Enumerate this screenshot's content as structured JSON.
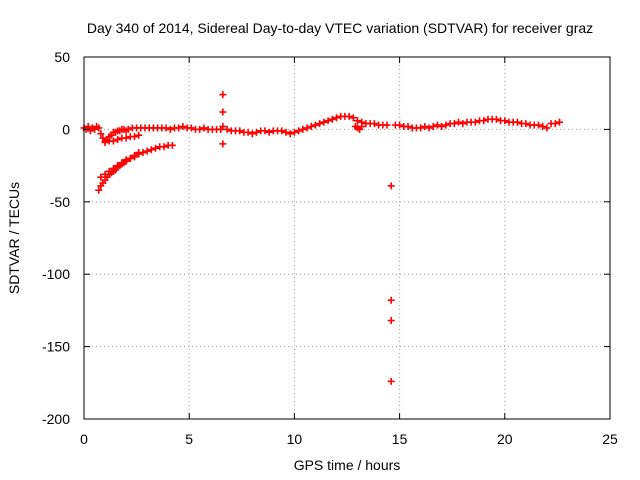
{
  "chart_data": {
    "type": "scatter",
    "title": "Day 340 of 2014, Sidereal Day-to-day VTEC variation (SDTVAR) for receiver graz",
    "xlabel": "GPS time / hours",
    "ylabel": "SDTVAR / TECUs",
    "xlim": [
      0,
      25
    ],
    "ylim": [
      -200,
      50
    ],
    "xticks": [
      0,
      5,
      10,
      15,
      20,
      25
    ],
    "yticks": [
      -200,
      -150,
      -100,
      -50,
      0,
      50
    ],
    "xtick_labels": [
      "0",
      "5",
      "10",
      "15",
      "20",
      "25"
    ],
    "ytick_labels": [
      "-200",
      "-150",
      "-100",
      "-50",
      "0",
      "50"
    ],
    "grid": true,
    "marker": "+",
    "series": [
      {
        "name": "SDTVAR",
        "color": "#ff0000",
        "points": [
          [
            0.0,
            1
          ],
          [
            0.1,
            0
          ],
          [
            0.2,
            2
          ],
          [
            0.3,
            -1
          ],
          [
            0.4,
            1
          ],
          [
            0.5,
            0
          ],
          [
            0.6,
            2
          ],
          [
            0.7,
            1
          ],
          [
            0.8,
            -3
          ],
          [
            0.9,
            -6
          ],
          [
            1.0,
            -8
          ],
          [
            1.1,
            -7
          ],
          [
            1.2,
            -5
          ],
          [
            1.3,
            -4
          ],
          [
            1.4,
            -2
          ],
          [
            1.5,
            -2
          ],
          [
            1.6,
            -1
          ],
          [
            1.7,
            -1
          ],
          [
            1.8,
            0
          ],
          [
            1.9,
            0
          ],
          [
            2.0,
            -1
          ],
          [
            2.1,
            0
          ],
          [
            2.3,
            1
          ],
          [
            2.5,
            1
          ],
          [
            2.7,
            1
          ],
          [
            2.9,
            1
          ],
          [
            3.1,
            1
          ],
          [
            3.3,
            1
          ],
          [
            3.5,
            1
          ],
          [
            3.7,
            1
          ],
          [
            3.9,
            1
          ],
          [
            4.1,
            0
          ],
          [
            4.3,
            1
          ],
          [
            4.5,
            1
          ],
          [
            4.7,
            2
          ],
          [
            4.9,
            1
          ],
          [
            5.1,
            1
          ],
          [
            5.3,
            0
          ],
          [
            5.5,
            0
          ],
          [
            5.7,
            1
          ],
          [
            5.9,
            0
          ],
          [
            6.1,
            0
          ],
          [
            6.3,
            0
          ],
          [
            6.5,
            0
          ],
          [
            6.6,
            24
          ],
          [
            6.6,
            12
          ],
          [
            6.6,
            -10
          ],
          [
            6.6,
            2
          ],
          [
            6.8,
            0
          ],
          [
            7.0,
            -1
          ],
          [
            7.2,
            -1
          ],
          [
            7.4,
            -1
          ],
          [
            7.6,
            -2
          ],
          [
            7.8,
            -2
          ],
          [
            8.0,
            -3
          ],
          [
            8.2,
            -2
          ],
          [
            8.4,
            -1
          ],
          [
            8.6,
            -1
          ],
          [
            8.8,
            -2
          ],
          [
            9.0,
            -1
          ],
          [
            9.2,
            -1
          ],
          [
            9.4,
            -1
          ],
          [
            9.6,
            -2
          ],
          [
            9.8,
            -3
          ],
          [
            10.0,
            -2
          ],
          [
            10.2,
            -1
          ],
          [
            10.4,
            0
          ],
          [
            10.6,
            1
          ],
          [
            10.8,
            2
          ],
          [
            11.0,
            3
          ],
          [
            11.2,
            4
          ],
          [
            11.4,
            5
          ],
          [
            11.6,
            6
          ],
          [
            11.8,
            7
          ],
          [
            12.0,
            8
          ],
          [
            12.2,
            9
          ],
          [
            12.4,
            9
          ],
          [
            12.6,
            9
          ],
          [
            12.8,
            8
          ],
          [
            13.0,
            6
          ],
          [
            13.2,
            5
          ],
          [
            13.4,
            4
          ],
          [
            13.6,
            4
          ],
          [
            13.8,
            4
          ],
          [
            14.0,
            3
          ],
          [
            14.2,
            3
          ],
          [
            14.4,
            3
          ],
          [
            12.9,
            2
          ],
          [
            13.0,
            1
          ],
          [
            13.1,
            0
          ],
          [
            13.2,
            2
          ],
          [
            14.6,
            -39
          ],
          [
            14.6,
            -118
          ],
          [
            14.6,
            -132
          ],
          [
            14.6,
            -174
          ],
          [
            14.8,
            3
          ],
          [
            15.0,
            3
          ],
          [
            15.2,
            2
          ],
          [
            15.4,
            2
          ],
          [
            15.6,
            1
          ],
          [
            15.8,
            1
          ],
          [
            16.0,
            1
          ],
          [
            16.2,
            2
          ],
          [
            16.4,
            1
          ],
          [
            16.6,
            2
          ],
          [
            16.8,
            3
          ],
          [
            17.0,
            2
          ],
          [
            17.2,
            3
          ],
          [
            17.4,
            4
          ],
          [
            17.6,
            4
          ],
          [
            17.8,
            5
          ],
          [
            18.0,
            4
          ],
          [
            18.2,
            5
          ],
          [
            18.4,
            5
          ],
          [
            18.6,
            5
          ],
          [
            18.8,
            6
          ],
          [
            19.0,
            6
          ],
          [
            19.2,
            7
          ],
          [
            19.4,
            7
          ],
          [
            19.6,
            7
          ],
          [
            19.8,
            6
          ],
          [
            20.0,
            6
          ],
          [
            20.2,
            5
          ],
          [
            20.4,
            5
          ],
          [
            20.6,
            5
          ],
          [
            20.8,
            4
          ],
          [
            21.0,
            4
          ],
          [
            21.2,
            3
          ],
          [
            21.4,
            3
          ],
          [
            21.6,
            3
          ],
          [
            21.8,
            2
          ],
          [
            22.0,
            1
          ],
          [
            22.2,
            4
          ],
          [
            22.4,
            4
          ],
          [
            22.6,
            5
          ],
          [
            0.8,
            -33
          ],
          [
            1.0,
            -31
          ],
          [
            1.2,
            -29
          ],
          [
            1.4,
            -27
          ],
          [
            1.6,
            -25
          ],
          [
            1.8,
            -23
          ],
          [
            2.0,
            -22
          ],
          [
            2.2,
            -20
          ],
          [
            2.4,
            -19
          ],
          [
            2.6,
            -17
          ],
          [
            2.8,
            -16
          ],
          [
            3.0,
            -15
          ],
          [
            3.2,
            -14
          ],
          [
            3.4,
            -13
          ],
          [
            3.6,
            -12
          ],
          [
            3.8,
            -12
          ],
          [
            4.0,
            -11
          ],
          [
            4.2,
            -11
          ],
          [
            0.7,
            -42
          ],
          [
            0.8,
            -39
          ],
          [
            0.9,
            -37
          ],
          [
            1.0,
            -35
          ],
          [
            1.1,
            -33
          ],
          [
            1.2,
            -31
          ],
          [
            1.3,
            -30
          ],
          [
            1.4,
            -29
          ],
          [
            1.5,
            -28
          ],
          [
            1.6,
            -26
          ],
          [
            1.7,
            -25
          ],
          [
            1.8,
            -24
          ],
          [
            1.9,
            -23
          ],
          [
            2.0,
            -21
          ],
          [
            2.2,
            -20
          ],
          [
            2.4,
            -18
          ],
          [
            2.6,
            -16
          ],
          [
            1.0,
            -9
          ],
          [
            1.2,
            -8
          ],
          [
            1.4,
            -8
          ],
          [
            1.6,
            -7
          ],
          [
            1.8,
            -6
          ],
          [
            2.0,
            -6
          ],
          [
            2.2,
            -5
          ],
          [
            2.4,
            -5
          ],
          [
            2.6,
            -4
          ]
        ]
      }
    ]
  },
  "colors": {
    "marker": "#ff0000",
    "grid": "#a0a0a0",
    "axis": "#000000",
    "background": "#ffffff"
  }
}
